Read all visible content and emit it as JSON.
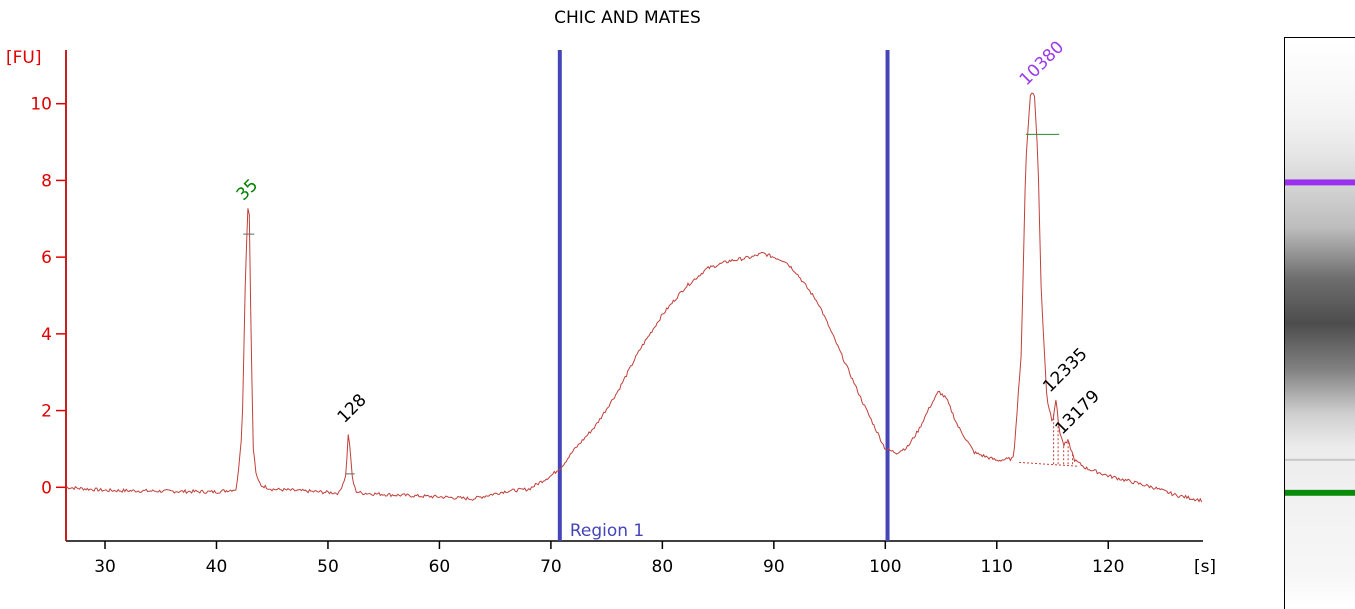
{
  "chart_data": {
    "type": "line",
    "title": "CHIC AND MATES",
    "ylabel": "[FU]",
    "xlabel": "[s]",
    "xlim": [
      26.5,
      128.5
    ],
    "ylim": [
      -1.4,
      11.4
    ],
    "x_ticks": [
      30,
      40,
      50,
      60,
      70,
      80,
      90,
      100,
      110,
      120
    ],
    "y_ticks": [
      0,
      2,
      4,
      6,
      8,
      10
    ],
    "region": {
      "label": "Region 1",
      "start": 70.8,
      "end": 100.2
    },
    "colors": {
      "axis": "#e00000",
      "trace": "#c0403a",
      "region_line": "#4545b8",
      "marker_lower": "#008000",
      "marker_upper": "#9b3be8",
      "peak_label": "#000000"
    },
    "series": [
      {
        "x": [
          26.5,
          30,
          35,
          40,
          41.8,
          42.3,
          42.6,
          42.8,
          42.95,
          43.1,
          43.3,
          43.6,
          44,
          45,
          48,
          51,
          51.6,
          51.85,
          52.0,
          52.2,
          52.5,
          53,
          56,
          60,
          63,
          66,
          68,
          70,
          71,
          72,
          74,
          76,
          78,
          80,
          82,
          84,
          86,
          88,
          89,
          90,
          91,
          92,
          94,
          96,
          98,
          100,
          101,
          102,
          103,
          104,
          104.8,
          105.5,
          106.5,
          108,
          110,
          111.5,
          112.2,
          112.6,
          113.0,
          113.2,
          113.4,
          113.7,
          114.0,
          114.5,
          115,
          115.3,
          115.6,
          116.0,
          116.4,
          117,
          118,
          120,
          122,
          124,
          126,
          128.5
        ],
        "y": [
          0.0,
          -0.08,
          -0.1,
          -0.12,
          -0.05,
          1.5,
          5.5,
          7.3,
          7.1,
          4.0,
          1.0,
          0.25,
          0.05,
          -0.05,
          -0.1,
          -0.15,
          0.3,
          1.5,
          0.9,
          0.2,
          -0.1,
          -0.15,
          -0.2,
          -0.25,
          -0.3,
          -0.1,
          -0.05,
          0.3,
          0.55,
          0.95,
          1.6,
          2.5,
          3.6,
          4.5,
          5.2,
          5.7,
          5.9,
          6.0,
          6.1,
          6.0,
          5.9,
          5.6,
          4.8,
          3.5,
          2.2,
          1.0,
          0.9,
          1.05,
          1.5,
          2.1,
          2.5,
          2.3,
          1.6,
          0.9,
          0.7,
          0.75,
          3.5,
          8.5,
          10.2,
          10.3,
          10.2,
          8.5,
          5.0,
          2.3,
          1.7,
          2.3,
          1.5,
          1.1,
          1.2,
          0.7,
          0.5,
          0.3,
          0.15,
          0.0,
          -0.2,
          -0.35
        ]
      }
    ],
    "peak_labels": [
      {
        "text": "35",
        "x": 42.95,
        "y": 7.3,
        "kind": "marker_lower"
      },
      {
        "text": "128",
        "x": 52.0,
        "y": 1.5,
        "kind": "peak"
      },
      {
        "text": "10380",
        "x": 113.2,
        "y": 10.3,
        "kind": "marker_upper"
      },
      {
        "text": "12335",
        "x": 115.3,
        "y": 2.3,
        "kind": "peak"
      },
      {
        "text": "13179",
        "x": 116.4,
        "y": 1.2,
        "kind": "peak"
      }
    ]
  },
  "gel_lane": {
    "bands": [
      {
        "position": 0.25,
        "color": "#9b2ff0",
        "strength": 1
      },
      {
        "position": 0.8,
        "color": "#0a8a0a",
        "strength": 1
      },
      {
        "position": 0.745,
        "color": "#c8c8c8",
        "strength": 0.6
      }
    ],
    "smear_center": 0.48,
    "smear_width": 0.18
  }
}
